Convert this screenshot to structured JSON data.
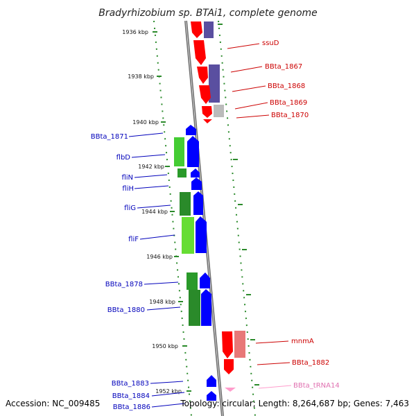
{
  "title": "Bradyrhizobium sp. BTAi1, complete genome",
  "footer": {
    "accession": "Accession: NC_009485",
    "topology": "Topology: circular; Length: 8,264,687 bp; Genes: 7,463"
  },
  "ticks": [
    "1936 kbp",
    "1938 kbp",
    "1940 kbp",
    "1942 kbp",
    "1944 kbp",
    "1946 kbp",
    "1948 kbp",
    "1950 kbp",
    "1952 kbp"
  ],
  "labels_right": [
    "ssuD",
    "BBta_1867",
    "BBta_1868",
    "BBta_1869",
    "BBta_1870",
    "mnmA",
    "BBta_1882",
    "BBta_tRNA14"
  ],
  "labels_left": [
    "BBta_1871",
    "flbD",
    "fliN",
    "fliH",
    "fliG",
    "fliF",
    "BBta_1878",
    "BBta_1880",
    "BBta_1883",
    "BBta_1884",
    "BBta_1886"
  ],
  "colors": {
    "forward_strand": "#ff0000",
    "reverse_strand": "#0000ff",
    "lavender": "#5a4fa0",
    "light_red": "#e87878",
    "green": "#2a9a2a",
    "light_green": "#66dd33",
    "grey": "#bbbbbb",
    "trna": "#ff9ccc"
  }
}
